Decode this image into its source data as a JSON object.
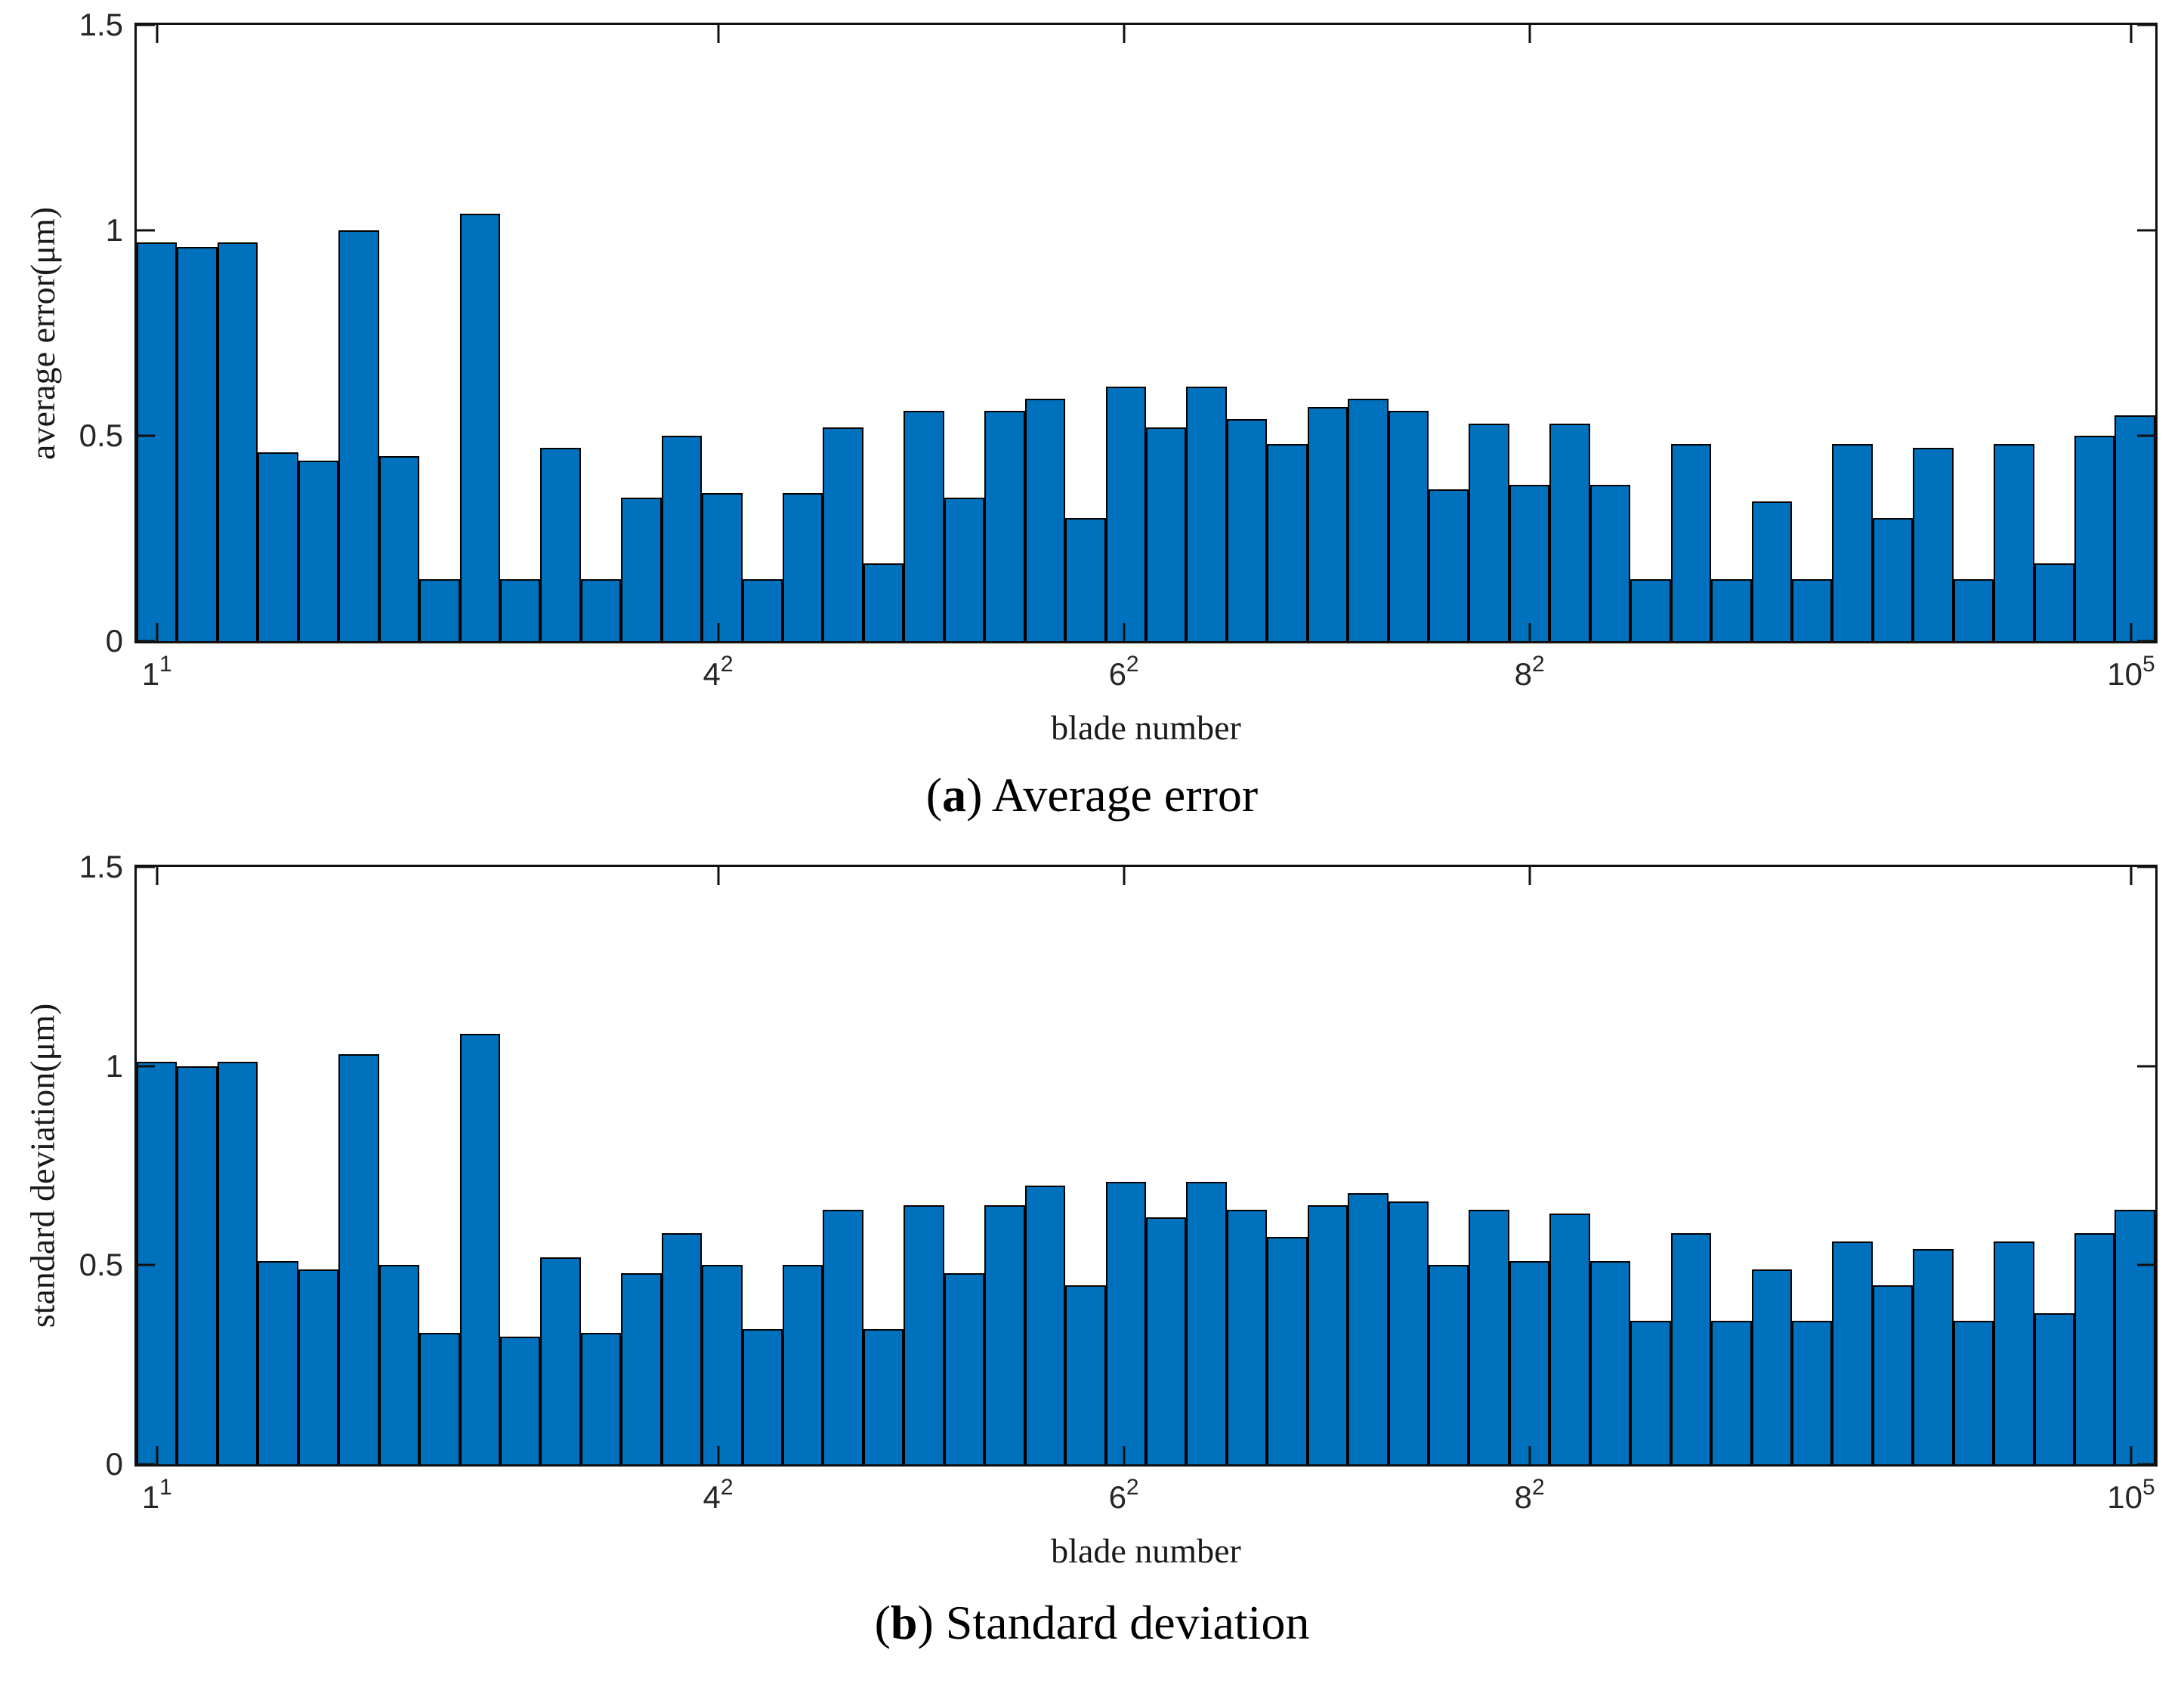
{
  "chart_data": [
    {
      "type": "bar",
      "title": "(a) Average error",
      "caption": {
        "pre": "(",
        "letter": "a",
        "post": ") Average error"
      },
      "xlabel": "blade number",
      "ylabel": "average error(μm)",
      "ylim": [
        0,
        1.5
      ],
      "yticks": [
        0,
        0.5,
        1,
        1.5
      ],
      "ytick_labels": [
        "0",
        "0.5",
        "1",
        "1.5"
      ],
      "xticks": [
        {
          "base": "1",
          "sup": "1",
          "pos": 0.01
        },
        {
          "base": "4",
          "sup": "2",
          "pos": 0.288
        },
        {
          "base": "6",
          "sup": "2",
          "pos": 0.489
        },
        {
          "base": "8",
          "sup": "2",
          "pos": 0.69
        },
        {
          "base": "10",
          "sup": "5",
          "pos": 0.988
        }
      ],
      "n_bars": 50,
      "values": [
        0.97,
        0.96,
        0.97,
        0.46,
        0.44,
        1.0,
        0.45,
        0.15,
        1.04,
        0.15,
        0.47,
        0.15,
        0.35,
        0.5,
        0.36,
        0.15,
        0.36,
        0.52,
        0.19,
        0.56,
        0.35,
        0.56,
        0.59,
        0.3,
        0.62,
        0.52,
        0.62,
        0.54,
        0.48,
        0.57,
        0.59,
        0.56,
        0.37,
        0.53,
        0.38,
        0.53,
        0.38,
        0.15,
        0.48,
        0.15,
        0.34,
        0.15,
        0.48,
        0.3,
        0.47,
        0.15,
        0.48,
        0.19,
        0.5,
        0.55
      ],
      "bar_color": "#0072BD",
      "bar_edge_color": "#000000",
      "axis_color": "#101010",
      "grid": false,
      "legend": null
    },
    {
      "type": "bar",
      "title": "(b) Standard deviation",
      "caption": {
        "pre": "(",
        "letter": "b",
        "post": ") Standard deviation"
      },
      "xlabel": "blade number",
      "ylabel": "standard deviation(μm)",
      "ylim": [
        0,
        1.5
      ],
      "yticks": [
        0,
        0.5,
        1,
        1.5
      ],
      "ytick_labels": [
        "0",
        "0.5",
        "1",
        "1.5"
      ],
      "xticks": [
        {
          "base": "1",
          "sup": "1",
          "pos": 0.01
        },
        {
          "base": "4",
          "sup": "2",
          "pos": 0.288
        },
        {
          "base": "6",
          "sup": "2",
          "pos": 0.489
        },
        {
          "base": "8",
          "sup": "2",
          "pos": 0.69
        },
        {
          "base": "10",
          "sup": "5",
          "pos": 0.988
        }
      ],
      "n_bars": 50,
      "values": [
        1.01,
        1.0,
        1.01,
        0.51,
        0.49,
        1.03,
        0.5,
        0.33,
        1.08,
        0.32,
        0.52,
        0.33,
        0.48,
        0.58,
        0.5,
        0.34,
        0.5,
        0.64,
        0.34,
        0.65,
        0.48,
        0.65,
        0.7,
        0.45,
        0.71,
        0.62,
        0.71,
        0.64,
        0.57,
        0.65,
        0.68,
        0.66,
        0.5,
        0.64,
        0.51,
        0.63,
        0.51,
        0.36,
        0.58,
        0.36,
        0.49,
        0.36,
        0.56,
        0.45,
        0.54,
        0.36,
        0.56,
        0.38,
        0.58,
        0.64
      ],
      "bar_color": "#0072BD",
      "bar_edge_color": "#000000",
      "axis_color": "#101010",
      "grid": false,
      "legend": null
    }
  ]
}
